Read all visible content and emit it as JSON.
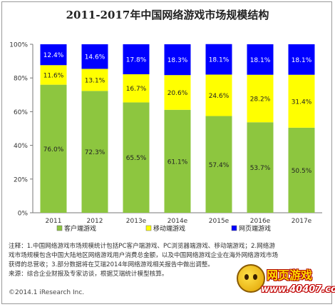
{
  "title": "2011-2017年中国网络游戏市场规模结构",
  "chart_data": {
    "type": "bar",
    "stacked": true,
    "percent": true,
    "categories": [
      "2011",
      "2012",
      "2013e",
      "2014e",
      "2015e",
      "2016e",
      "2017e"
    ],
    "series": [
      {
        "name": "客户端游戏",
        "color": "#8dc63f",
        "values": [
          76.0,
          72.3,
          65.5,
          61.1,
          57.4,
          53.7,
          50.5
        ]
      },
      {
        "name": "移动端游戏",
        "color": "#ffff00",
        "values": [
          11.6,
          13.1,
          16.7,
          20.6,
          24.6,
          28.2,
          31.4
        ]
      },
      {
        "name": "网页端游戏",
        "color": "#0000ff",
        "values": [
          12.4,
          14.6,
          17.8,
          18.3,
          18.1,
          18.1,
          18.1
        ]
      }
    ],
    "ylim": [
      0,
      100
    ],
    "yticks": [
      "0%",
      "20%",
      "40%",
      "60%",
      "80%",
      "100%"
    ],
    "grid": false,
    "legend": "bottom"
  },
  "notes": [
    "注释：1.中国网络游戏市场规模统计包括PC客户端游戏、PC浏览器端游戏、移动端游戏；2.网络游",
    "戏市场规模包含中国大陆地区网络游戏用户消费总金额，以及中国网络游戏企业在海外网络游戏市场",
    "获得的总营收；3.部分数据将在艾瑞2014年网络游戏相关报告中做出调整。",
    "来源：综合企业财报及专家访谈，根据艾瑞统计模型核算。"
  ],
  "copyright": "©2014.1 iResearch Inc.",
  "watermark": {
    "line1": "网页游戏",
    "line2": "www.40407.com"
  }
}
